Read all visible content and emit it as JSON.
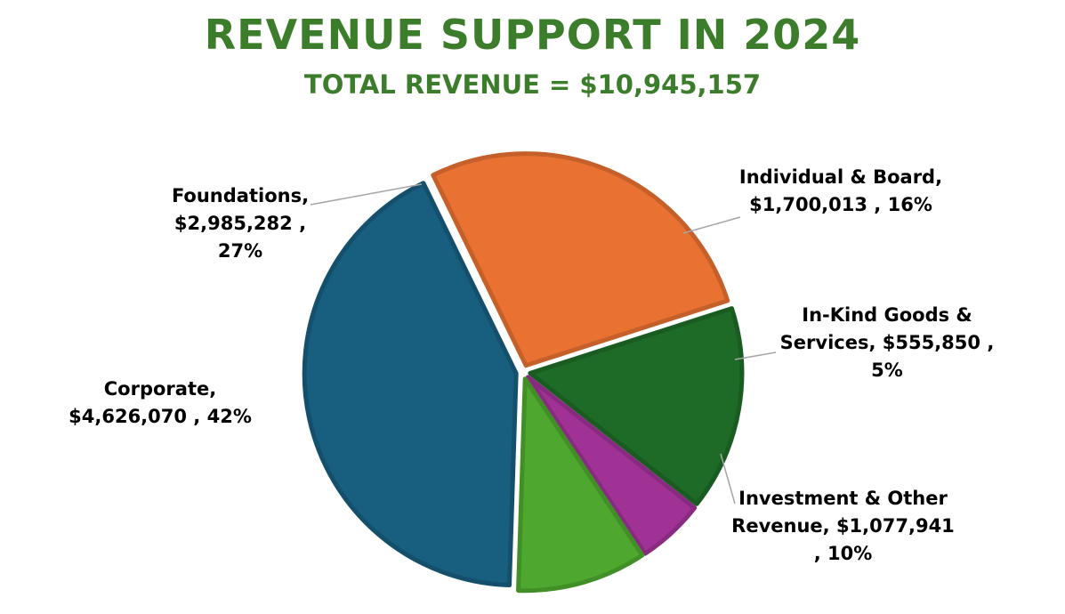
{
  "chart_data": {
    "type": "pie",
    "title": "REVENUE SUPPORT IN 2024",
    "subtitle": "TOTAL REVENUE = $10,945,157",
    "slices": [
      {
        "name": "Foundations",
        "value": 2985282,
        "percent": 27,
        "color": "#e97132",
        "label_lines": [
          "Foundations,",
          "$2,985,282 , 27%"
        ]
      },
      {
        "name": "Individual & Board",
        "value": 1700013,
        "percent": 16,
        "color": "#1d6b27",
        "label_lines": [
          "Individual & Board,",
          "$1,700,013 , 16%"
        ]
      },
      {
        "name": "In-Kind Goods & Services",
        "value": 555850,
        "percent": 5,
        "color": "#a03296",
        "label_lines": [
          "In-Kind Goods &",
          "Services, $555,850 ,",
          "5%"
        ]
      },
      {
        "name": "Investment & Other Revenue",
        "value": 1077941,
        "percent": 10,
        "color": "#4ea72e",
        "label_lines": [
          "Investment & Other",
          "Revenue, $1,077,941",
          ", 10%"
        ]
      },
      {
        "name": "Corporate",
        "value": 4626070,
        "percent": 42,
        "color": "#185e7e",
        "label_lines": [
          "Corporate,",
          "$4,626,070 , 42%"
        ]
      }
    ],
    "legend": "none",
    "data_labels": "outside with leader lines"
  }
}
